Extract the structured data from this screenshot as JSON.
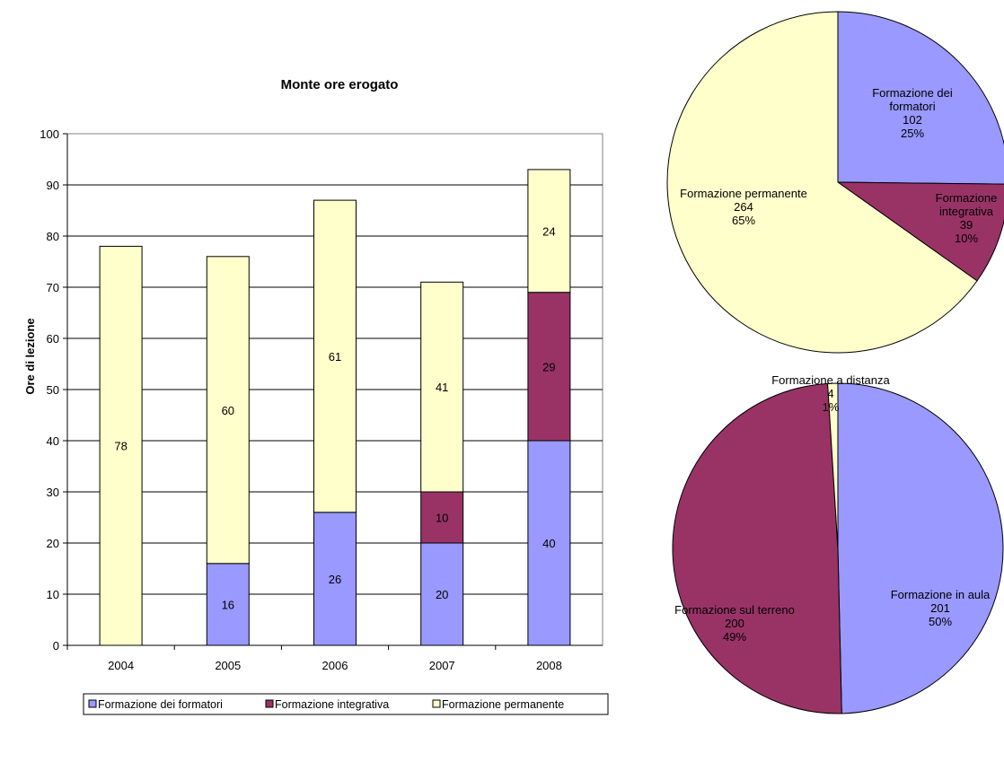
{
  "chart_data": [
    {
      "type": "bar",
      "stacked": true,
      "title": "Monte ore erogato",
      "xlabel": "",
      "ylabel": "Ore di lezione",
      "ylim": [
        0,
        100
      ],
      "yticks": [
        0,
        10,
        20,
        30,
        40,
        50,
        60,
        70,
        80,
        90,
        100
      ],
      "categories": [
        "2004",
        "2005",
        "2006",
        "2007",
        "2008"
      ],
      "grid": true,
      "legend_position": "bottom",
      "series": [
        {
          "name": "Formazione dei formatori",
          "color": "#9999ff",
          "values": [
            0,
            16,
            26,
            20,
            40
          ]
        },
        {
          "name": "Formazione integrativa",
          "color": "#993366",
          "values": [
            0,
            0,
            0,
            10,
            29
          ]
        },
        {
          "name": "Formazione permanente",
          "color": "#ffffcc",
          "values": [
            78,
            60,
            61,
            41,
            24
          ]
        }
      ]
    },
    {
      "type": "pie",
      "title": "",
      "slices": [
        {
          "name": "Formazione dei formatori",
          "value": 102,
          "percent": "25%",
          "color": "#9999ff"
        },
        {
          "name": "Formazione integrativa",
          "value": 39,
          "percent": "10%",
          "color": "#993366"
        },
        {
          "name": "Formazione permanente",
          "value": 264,
          "percent": "65%",
          "color": "#ffffcc"
        }
      ]
    },
    {
      "type": "pie",
      "title": "",
      "slices": [
        {
          "name": "Formazione in aula",
          "value": 201,
          "percent": "50%",
          "color": "#9999ff"
        },
        {
          "name": "Formazione sul terreno",
          "value": 200,
          "percent": "49%",
          "color": "#993366"
        },
        {
          "name": "Formazione a distanza",
          "value": 4,
          "percent": "1%",
          "color": "#ffffcc"
        }
      ]
    }
  ]
}
